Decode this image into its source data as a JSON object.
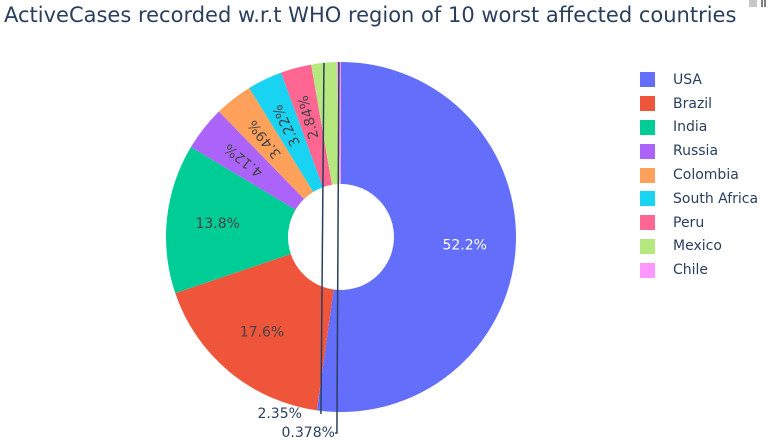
{
  "chart_data": {
    "type": "pie",
    "hole": true,
    "title": "ActiveCases recorded w.r.t WHO region of 10 worst affected countries",
    "legend_position": "right",
    "labels": [
      "USA",
      "Brazil",
      "India",
      "Russia",
      "Colombia",
      "South Africa",
      "Peru",
      "Mexico",
      "Chile"
    ],
    "percent_labels": [
      "52.2%",
      "17.6%",
      "13.8%",
      "4.12%",
      "3.49%",
      "3.22%",
      "2.84%",
      "2.35%",
      "0.378%"
    ],
    "values": [
      52.2,
      17.6,
      13.8,
      4.12,
      3.49,
      3.22,
      2.84,
      2.35,
      0.378
    ],
    "colors": [
      "#636efa",
      "#EF553B",
      "#00cc96",
      "#ab63fa",
      "#FFA15A",
      "#19d3f3",
      "#FF6692",
      "#B6E880",
      "#FF97FF"
    ]
  }
}
